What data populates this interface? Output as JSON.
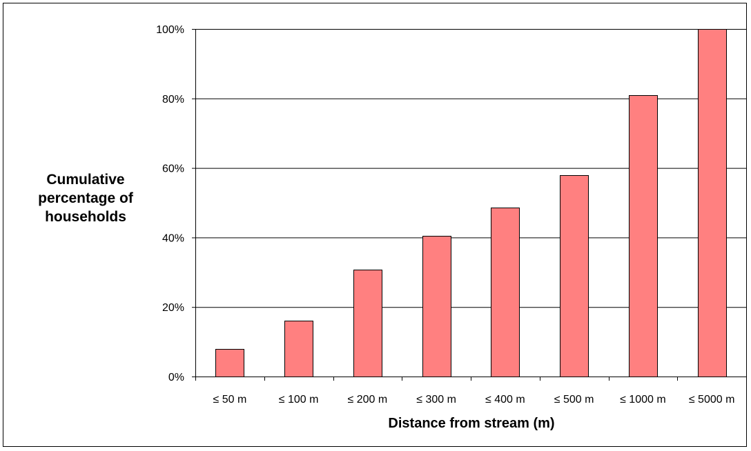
{
  "chart_data": {
    "type": "bar",
    "categories": [
      "≤ 50 m",
      "≤ 100 m",
      "≤ 200 m",
      "≤ 300 m",
      "≤ 400 m",
      "≤ 500 m",
      "≤ 1000 m",
      "≤ 5000 m"
    ],
    "values": [
      8,
      16,
      30.8,
      40.4,
      48.7,
      58,
      81,
      100
    ],
    "xlabel": "Distance from stream (m)",
    "ylabel_lines": [
      "Cumulative",
      "percentage of",
      "households"
    ],
    "ylim": [
      0,
      100
    ],
    "yticks": [
      0,
      20,
      40,
      60,
      80,
      100
    ],
    "ytick_labels": [
      "0%",
      "20%",
      "40%",
      "60%",
      "80%",
      "100%"
    ],
    "grid": true,
    "legend": "none",
    "bar_color": "#ff8080",
    "bar_edge_color": "#000000"
  }
}
